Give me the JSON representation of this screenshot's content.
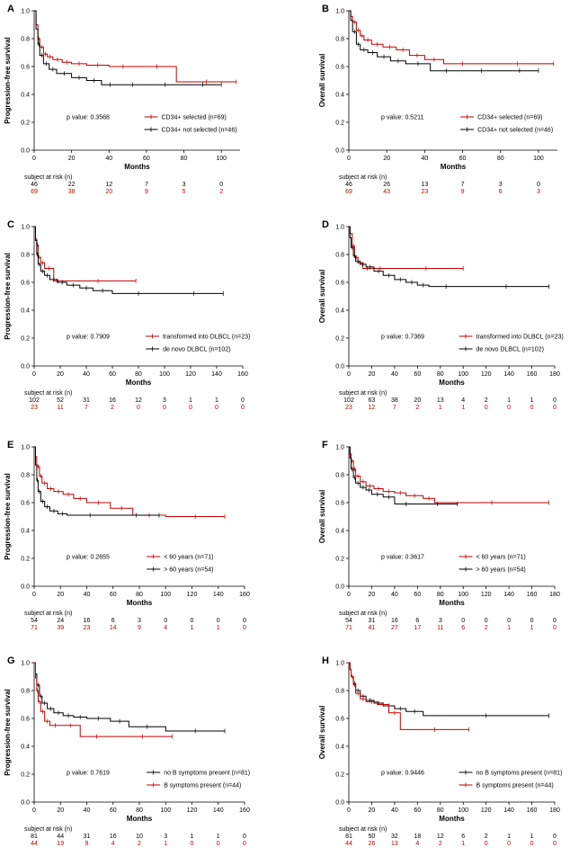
{
  "colors": {
    "selected": "#c00000",
    "reference": "#000000"
  },
  "risk_label": "subject at risk  (n)",
  "chart_data": [
    {
      "type": "line",
      "panel": "A",
      "ylabel": "Progression-free survival",
      "xlabel": "Months",
      "xlim": [
        0,
        110
      ],
      "xticks": [
        0,
        20,
        40,
        60,
        80,
        100
      ],
      "ylim": [
        0,
        1.0
      ],
      "yticks": [
        "0.0",
        "0.2",
        "0.4",
        "0.6",
        "0.8",
        "1.0"
      ],
      "grid": false,
      "legend_position": "center-right",
      "pvalue": "p value: 0.3568",
      "series": [
        {
          "name": "CD34+ selected (n=69)",
          "color": "red",
          "x": [
            0,
            1,
            2,
            3,
            5,
            7,
            10,
            15,
            20,
            28,
            40,
            55,
            76,
            108
          ],
          "y": [
            1.0,
            0.9,
            0.8,
            0.74,
            0.69,
            0.67,
            0.65,
            0.63,
            0.62,
            0.61,
            0.6,
            0.6,
            0.49,
            0.49
          ],
          "risk": [
            "69",
            "38",
            "20",
            "9",
            "5",
            "2"
          ]
        },
        {
          "name": "CD34+ not selected (n=46)",
          "color": "black",
          "x": [
            0,
            1,
            2,
            3,
            5,
            8,
            12,
            20,
            28,
            36,
            45,
            60,
            80,
            100
          ],
          "y": [
            1.0,
            0.87,
            0.76,
            0.68,
            0.62,
            0.58,
            0.55,
            0.52,
            0.5,
            0.47,
            0.47,
            0.47,
            0.47,
            0.47
          ],
          "risk": [
            "46",
            "22",
            "12",
            "7",
            "3",
            "0"
          ]
        }
      ]
    },
    {
      "type": "line",
      "panel": "B",
      "ylabel": "Overall survival",
      "xlabel": "Months",
      "xlim": [
        0,
        110
      ],
      "xticks": [
        0,
        20,
        40,
        60,
        80,
        100
      ],
      "ylim": [
        0,
        1.0
      ],
      "yticks": [
        "0.0",
        "0.2",
        "0.4",
        "0.6",
        "0.8",
        "1.0"
      ],
      "grid": false,
      "legend_position": "center-right",
      "pvalue": "p value: 0.5211",
      "series": [
        {
          "name": "CD34+ selected (n=69)",
          "color": "red",
          "x": [
            0,
            1,
            2,
            4,
            6,
            8,
            12,
            18,
            25,
            32,
            40,
            50,
            70,
            108
          ],
          "y": [
            1.0,
            0.96,
            0.92,
            0.86,
            0.82,
            0.79,
            0.76,
            0.74,
            0.72,
            0.68,
            0.65,
            0.62,
            0.62,
            0.62
          ],
          "risk": [
            "69",
            "43",
            "23",
            "9",
            "6",
            "3"
          ]
        },
        {
          "name": "CD34+ not selected (n=46)",
          "color": "black",
          "x": [
            0,
            1,
            2,
            4,
            6,
            10,
            15,
            22,
            30,
            43,
            60,
            80,
            100
          ],
          "y": [
            1.0,
            0.93,
            0.85,
            0.76,
            0.72,
            0.7,
            0.67,
            0.64,
            0.62,
            0.57,
            0.57,
            0.57,
            0.57
          ],
          "risk": [
            "46",
            "26",
            "13",
            "7",
            "3",
            "0"
          ]
        }
      ]
    },
    {
      "type": "line",
      "panel": "C",
      "ylabel": "Progression-free survival",
      "xlabel": "Months",
      "xlim": [
        0,
        160
      ],
      "xticks": [
        0,
        20,
        40,
        60,
        80,
        100,
        120,
        140,
        160
      ],
      "ylim": [
        0,
        1.0
      ],
      "yticks": [
        "0.0",
        "0.2",
        "0.4",
        "0.6",
        "0.8",
        "1.0"
      ],
      "grid": false,
      "legend_position": "bottom-right",
      "pvalue": "p value: 0.7909",
      "series": [
        {
          "name": "transformed into DLBCL (n=23)",
          "color": "red",
          "x": [
            0,
            1,
            2,
            3,
            5,
            8,
            15,
            20,
            78
          ],
          "y": [
            1.0,
            0.91,
            0.87,
            0.78,
            0.74,
            0.7,
            0.61,
            0.61,
            0.61
          ],
          "risk": [
            "23",
            "11",
            "7",
            "2",
            "0",
            "0",
            "0",
            "0",
            "0"
          ]
        },
        {
          "name": "de novo DLBCL (n=102)",
          "color": "black",
          "x": [
            0,
            1,
            2,
            3,
            5,
            8,
            12,
            18,
            25,
            35,
            45,
            60,
            100,
            145
          ],
          "y": [
            1.0,
            0.9,
            0.8,
            0.73,
            0.68,
            0.65,
            0.62,
            0.6,
            0.58,
            0.56,
            0.54,
            0.52,
            0.52,
            0.52
          ],
          "risk": [
            "102",
            "52",
            "31",
            "16",
            "12",
            "3",
            "1",
            "1",
            "0"
          ]
        }
      ]
    },
    {
      "type": "line",
      "panel": "D",
      "ylabel": "Overall survival",
      "xlabel": "Months",
      "xlim": [
        0,
        180
      ],
      "xticks": [
        0,
        20,
        40,
        60,
        80,
        100,
        120,
        140,
        160,
        180
      ],
      "ylim": [
        0,
        1.0
      ],
      "yticks": [
        "0.0",
        "0.2",
        "0.4",
        "0.6",
        "0.8",
        "1.0"
      ],
      "grid": false,
      "legend_position": "bottom-right",
      "pvalue": "p value: 0.7369",
      "series": [
        {
          "name": "transformed into DLBCL (n=23)",
          "color": "red",
          "x": [
            0,
            1,
            3,
            5,
            8,
            12,
            20,
            35,
            100
          ],
          "y": [
            1.0,
            0.95,
            0.86,
            0.78,
            0.74,
            0.7,
            0.7,
            0.7,
            0.7
          ],
          "risk": [
            "23",
            "12",
            "7",
            "2",
            "1",
            "1",
            "0",
            "0",
            "0",
            "0"
          ]
        },
        {
          "name": "de novo DLBCL (n=102)",
          "color": "black",
          "x": [
            0,
            1,
            2,
            4,
            6,
            10,
            15,
            22,
            30,
            40,
            50,
            60,
            70,
            100,
            175
          ],
          "y": [
            1.0,
            0.92,
            0.85,
            0.79,
            0.75,
            0.73,
            0.71,
            0.68,
            0.65,
            0.62,
            0.6,
            0.58,
            0.57,
            0.57,
            0.57
          ],
          "risk": [
            "102",
            "63",
            "38",
            "20",
            "13",
            "4",
            "2",
            "1",
            "1",
            "0"
          ]
        }
      ]
    },
    {
      "type": "line",
      "panel": "E",
      "ylabel": "Progression-free survival",
      "xlabel": "Months",
      "xlim": [
        0,
        160
      ],
      "xticks": [
        0,
        20,
        40,
        60,
        80,
        100,
        120,
        140,
        160
      ],
      "ylim": [
        0,
        1.0
      ],
      "yticks": [
        "0.0",
        "0.2",
        "0.4",
        "0.6",
        "0.8",
        "1.0"
      ],
      "grid": false,
      "legend_position": "bottom-right",
      "pvalue": "p value: 0.2655",
      "series": [
        {
          "name": "< 60 years (n=71)",
          "color": "red",
          "x": [
            0,
            1,
            2,
            4,
            6,
            10,
            15,
            22,
            30,
            40,
            58,
            75,
            100,
            145
          ],
          "y": [
            1.0,
            0.93,
            0.86,
            0.79,
            0.74,
            0.7,
            0.68,
            0.66,
            0.63,
            0.6,
            0.56,
            0.51,
            0.5,
            0.5
          ],
          "risk": [
            "71",
            "39",
            "23",
            "14",
            "9",
            "4",
            "1",
            "1",
            "0"
          ]
        },
        {
          "name": "> 60 years (n=54)",
          "color": "black",
          "x": [
            0,
            1,
            2,
            3,
            5,
            8,
            12,
            18,
            25,
            60,
            95
          ],
          "y": [
            1.0,
            0.87,
            0.76,
            0.68,
            0.61,
            0.57,
            0.54,
            0.52,
            0.51,
            0.51,
            0.51
          ],
          "risk": [
            "54",
            "24",
            "16",
            "6",
            "3",
            "0",
            "0",
            "0",
            "0"
          ]
        }
      ]
    },
    {
      "type": "line",
      "panel": "F",
      "ylabel": "Overall survival",
      "xlabel": "Months",
      "xlim": [
        0,
        180
      ],
      "xticks": [
        0,
        20,
        40,
        60,
        80,
        100,
        120,
        140,
        160,
        180
      ],
      "ylim": [
        0,
        1.0
      ],
      "yticks": [
        "0.0",
        "0.2",
        "0.4",
        "0.6",
        "0.8",
        "1.0"
      ],
      "grid": false,
      "legend_position": "bottom-right",
      "pvalue": "p value: 0.3617",
      "series": [
        {
          "name": "< 60 years (n=71)",
          "color": "red",
          "x": [
            0,
            1,
            2,
            4,
            6,
            10,
            15,
            22,
            30,
            40,
            50,
            65,
            75,
            175
          ],
          "y": [
            1.0,
            0.95,
            0.9,
            0.84,
            0.79,
            0.75,
            0.72,
            0.7,
            0.68,
            0.67,
            0.65,
            0.63,
            0.6,
            0.6
          ],
          "risk": [
            "71",
            "41",
            "27",
            "17",
            "11",
            "6",
            "2",
            "1",
            "1",
            "0"
          ]
        },
        {
          "name": "> 60 years (n=54)",
          "color": "black",
          "x": [
            0,
            1,
            2,
            4,
            6,
            10,
            15,
            20,
            30,
            40,
            60,
            95
          ],
          "y": [
            1.0,
            0.92,
            0.84,
            0.78,
            0.74,
            0.71,
            0.69,
            0.66,
            0.64,
            0.59,
            0.59,
            0.59
          ],
          "risk": [
            "54",
            "31",
            "16",
            "6",
            "3",
            "0",
            "0",
            "0",
            "0",
            "0"
          ]
        }
      ]
    },
    {
      "type": "line",
      "panel": "G",
      "ylabel": "Progression-free survival",
      "xlabel": "Months",
      "xlim": [
        0,
        160
      ],
      "xticks": [
        0,
        20,
        40,
        60,
        80,
        100,
        120,
        140,
        160
      ],
      "ylim": [
        0,
        1.0
      ],
      "yticks": [
        "0.0",
        "0.2",
        "0.4",
        "0.6",
        "0.8",
        "1.0"
      ],
      "grid": false,
      "legend_position": "bottom-right",
      "pvalue": "p value: 0.7619",
      "series": [
        {
          "name": "no B symptoms present (n=81)",
          "color": "black",
          "x": [
            0,
            1,
            2,
            4,
            6,
            10,
            15,
            22,
            30,
            40,
            58,
            72,
            100,
            145
          ],
          "y": [
            1.0,
            0.92,
            0.84,
            0.76,
            0.71,
            0.67,
            0.64,
            0.62,
            0.61,
            0.6,
            0.58,
            0.54,
            0.51,
            0.51
          ],
          "risk": [
            "81",
            "44",
            "31",
            "16",
            "10",
            "3",
            "1",
            "1",
            "0"
          ]
        },
        {
          "name": "B symptoms present (n=44)",
          "color": "red",
          "x": [
            0,
            1,
            2,
            3,
            5,
            8,
            12,
            20,
            35,
            60,
            105
          ],
          "y": [
            1.0,
            0.89,
            0.8,
            0.72,
            0.65,
            0.58,
            0.55,
            0.55,
            0.47,
            0.47,
            0.47
          ],
          "risk": [
            "44",
            "19",
            "9",
            "4",
            "2",
            "1",
            "0",
            "0",
            "0"
          ]
        }
      ]
    },
    {
      "type": "line",
      "panel": "H",
      "ylabel": "Overall survival",
      "xlabel": "Months",
      "xlim": [
        0,
        180
      ],
      "xticks": [
        0,
        20,
        40,
        60,
        80,
        100,
        120,
        140,
        160,
        180
      ],
      "ylim": [
        0,
        1.0
      ],
      "yticks": [
        "0.0",
        "0.2",
        "0.4",
        "0.6",
        "0.8",
        "1.0"
      ],
      "grid": false,
      "legend_position": "bottom-right",
      "pvalue": "p value: 0.9446",
      "series": [
        {
          "name": "no B symptoms present (n=81)",
          "color": "black",
          "x": [
            0,
            1,
            2,
            4,
            6,
            10,
            15,
            22,
            30,
            40,
            50,
            65,
            175
          ],
          "y": [
            1.0,
            0.95,
            0.9,
            0.85,
            0.8,
            0.76,
            0.73,
            0.71,
            0.69,
            0.67,
            0.65,
            0.62,
            0.62
          ],
          "risk": [
            "81",
            "50",
            "32",
            "18",
            "12",
            "6",
            "2",
            "1",
            "1",
            "0"
          ]
        },
        {
          "name": "B symptoms present (n=44)",
          "color": "red",
          "x": [
            0,
            1,
            2,
            4,
            6,
            10,
            15,
            25,
            35,
            45,
            105
          ],
          "y": [
            1.0,
            0.95,
            0.9,
            0.84,
            0.78,
            0.74,
            0.72,
            0.7,
            0.64,
            0.52,
            0.52
          ],
          "risk": [
            "44",
            "26",
            "13",
            "4",
            "2",
            "1",
            "0",
            "0",
            "0",
            "0"
          ]
        }
      ]
    }
  ]
}
